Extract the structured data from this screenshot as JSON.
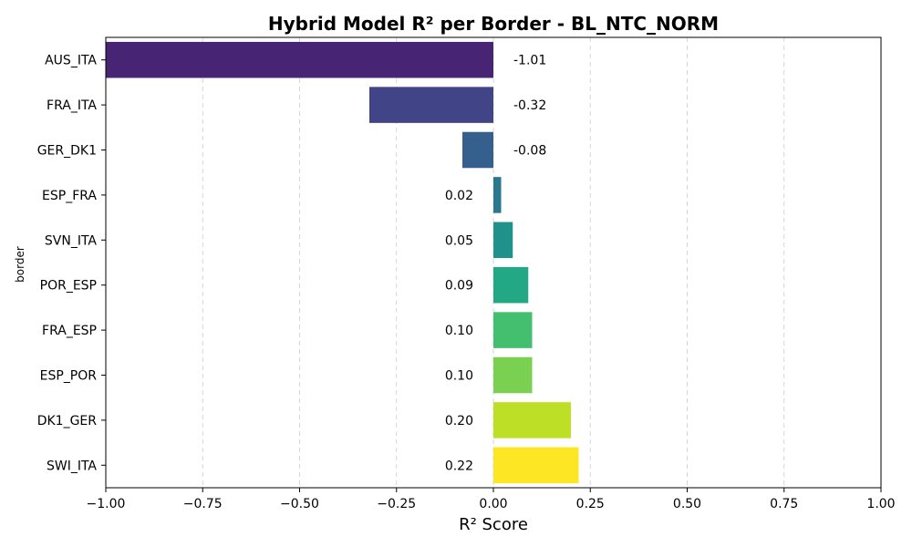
{
  "chart_data": {
    "type": "bar",
    "orientation": "horizontal",
    "title": "Hybrid Model R² per Border - BL_NTC_NORM",
    "xlabel": "R² Score",
    "ylabel": "border",
    "xlim": [
      -1.0,
      1.0
    ],
    "xticks": [
      -1.0,
      -0.75,
      -0.5,
      -0.25,
      0.0,
      0.25,
      0.5,
      0.75,
      1.0
    ],
    "xtick_labels": [
      "−1.00",
      "−0.75",
      "−0.50",
      "−0.25",
      "0.00",
      "0.25",
      "0.50",
      "0.75",
      "1.00"
    ],
    "grid": "x-dashed",
    "categories": [
      "AUS_ITA",
      "FRA_ITA",
      "GER_DK1",
      "ESP_FRA",
      "SVN_ITA",
      "POR_ESP",
      "FRA_ESP",
      "ESP_POR",
      "DK1_GER",
      "SWI_ITA"
    ],
    "values": [
      -1.01,
      -0.32,
      -0.08,
      0.02,
      0.05,
      0.09,
      0.1,
      0.1,
      0.2,
      0.22
    ],
    "value_labels": [
      "-1.01",
      "-0.32",
      "-0.08",
      "0.02",
      "0.05",
      "0.09",
      "0.10",
      "0.10",
      "0.20",
      "0.22"
    ],
    "colors": [
      "#482475",
      "#414487",
      "#355f8d",
      "#2a788e",
      "#21918c",
      "#22a884",
      "#44bf70",
      "#7ad151",
      "#bddf26",
      "#fde725"
    ]
  }
}
